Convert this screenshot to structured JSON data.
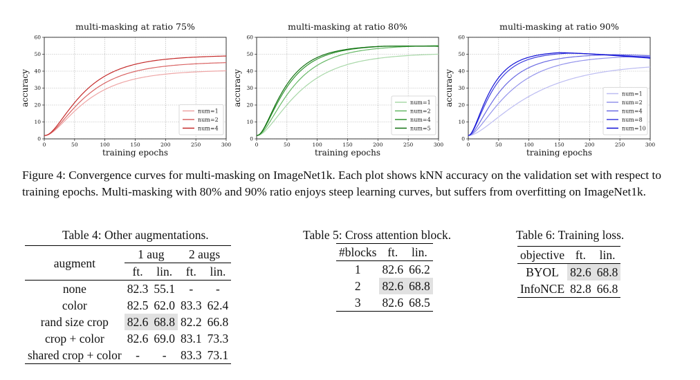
{
  "charts": [
    {
      "title": "multi-masking at ratio 75%"
    },
    {
      "title": "multi-masking at ratio 80%"
    },
    {
      "title": "multi-masking at ratio 90%"
    }
  ],
  "chart_data": [
    {
      "type": "line",
      "title": "multi-masking at ratio 75%",
      "xlabel": "training epochs",
      "ylabel": "accuracy",
      "xlim": [
        0,
        300
      ],
      "ylim": [
        0,
        60
      ],
      "xticks": [
        0,
        50,
        100,
        150,
        200,
        250,
        300
      ],
      "yticks": [
        0,
        10,
        20,
        30,
        40,
        50,
        60
      ],
      "grid": true,
      "legend_position": "lower-right",
      "series": [
        {
          "name": "num=1",
          "color": "#eea5a5",
          "final": 42,
          "peak": 42,
          "peak_epoch": 300,
          "k": 0.0185,
          "c": 12
        },
        {
          "name": "num=2",
          "color": "#d96363",
          "final": 47,
          "peak": 47,
          "peak_epoch": 300,
          "k": 0.019,
          "c": 12
        },
        {
          "name": "num=4",
          "color": "#c42a2a",
          "final": 51,
          "peak": 51,
          "peak_epoch": 300,
          "k": 0.0205,
          "c": 12
        }
      ]
    },
    {
      "type": "line",
      "title": "multi-masking at ratio 80%",
      "xlabel": "training epochs",
      "ylabel": "accuracy",
      "xlim": [
        0,
        300
      ],
      "ylim": [
        0,
        60
      ],
      "xticks": [
        0,
        50,
        100,
        150,
        200,
        250,
        300
      ],
      "yticks": [
        0,
        10,
        20,
        30,
        40,
        50,
        60
      ],
      "grid": true,
      "legend_position": "lower-right",
      "series": [
        {
          "name": "num=1",
          "color": "#a8d8a8",
          "final": 52,
          "peak": 52,
          "peak_epoch": 300,
          "k": 0.018,
          "c": 10
        },
        {
          "name": "num=2",
          "color": "#66b866",
          "final": 57,
          "peak": 57,
          "peak_epoch": 300,
          "k": 0.022,
          "c": 10
        },
        {
          "name": "num=4",
          "color": "#2e932e",
          "final": 56.5,
          "peak": 57.5,
          "peak_epoch": 210,
          "k": 0.027,
          "c": 10
        },
        {
          "name": "num=5",
          "color": "#117011",
          "final": 56.5,
          "peak": 57.5,
          "peak_epoch": 205,
          "k": 0.029,
          "c": 10
        }
      ]
    },
    {
      "type": "line",
      "title": "multi-masking at ratio 90%",
      "xlabel": "training epochs",
      "ylabel": "accuracy",
      "xlim": [
        0,
        300
      ],
      "ylim": [
        0,
        60
      ],
      "xticks": [
        0,
        50,
        100,
        150,
        200,
        250,
        300
      ],
      "yticks": [
        0,
        10,
        20,
        30,
        40,
        50,
        60
      ],
      "grid": true,
      "legend_position": "lower-right",
      "series": [
        {
          "name": "num=1",
          "color": "#bcbcf2",
          "final": 45,
          "peak": 45,
          "peak_epoch": 300,
          "k": 0.012,
          "c": 5
        },
        {
          "name": "num=2",
          "color": "#9494ec",
          "final": 50,
          "peak": 50,
          "peak_epoch": 300,
          "k": 0.018,
          "c": 5
        },
        {
          "name": "num=4",
          "color": "#6a6ae3",
          "final": 50,
          "peak": 51,
          "peak_epoch": 240,
          "k": 0.024,
          "c": 5
        },
        {
          "name": "num=8",
          "color": "#3d3dde",
          "final": 49,
          "peak": 52.5,
          "peak_epoch": 165,
          "k": 0.032,
          "c": 5
        },
        {
          "name": "num=10",
          "color": "#0f0fd6",
          "final": 48.5,
          "peak": 53,
          "peak_epoch": 150,
          "k": 0.035,
          "c": 5
        }
      ]
    }
  ],
  "caption": "Figure 4: Convergence curves for multi-masking on ImageNet1k. Each plot shows kNN accuracy on the validation set with respect to training epochs. Multi-masking with 80% and 90% ratio enjoys steep learning curves, but suffers from overfitting on ImageNet1k.",
  "table4": {
    "caption": "Table 4: Other augmentations.",
    "col_augment": "augment",
    "group1": "1 aug",
    "group2": "2 augs",
    "sub": [
      "ft.",
      "lin.",
      "ft.",
      "lin."
    ],
    "rows": [
      {
        "name": "none",
        "v": [
          "82.3",
          "55.1",
          "-",
          "-"
        ]
      },
      {
        "name": "color",
        "v": [
          "82.5",
          "62.0",
          "83.3",
          "62.4"
        ]
      },
      {
        "name": "rand size crop",
        "v": [
          "82.6",
          "68.8",
          "82.2",
          "66.8"
        ]
      },
      {
        "name": "crop + color",
        "v": [
          "82.6",
          "69.0",
          "83.1",
          "73.3"
        ]
      },
      {
        "name": "shared crop + color",
        "v": [
          "-",
          "-",
          "83.3",
          "73.1"
        ]
      }
    ]
  },
  "table5": {
    "caption": "Table 5: Cross attention block.",
    "headers": [
      "#blocks",
      "ft.",
      "lin."
    ],
    "rows": [
      [
        "1",
        "82.6",
        "66.2"
      ],
      [
        "2",
        "82.6",
        "68.8"
      ],
      [
        "3",
        "82.6",
        "68.5"
      ]
    ]
  },
  "table6": {
    "caption": "Table 6: Training loss.",
    "headers": [
      "objective",
      "ft.",
      "lin."
    ],
    "rows": [
      [
        "BYOL",
        "82.6",
        "68.8"
      ],
      [
        "InfoNCE",
        "82.8",
        "66.8"
      ]
    ]
  }
}
